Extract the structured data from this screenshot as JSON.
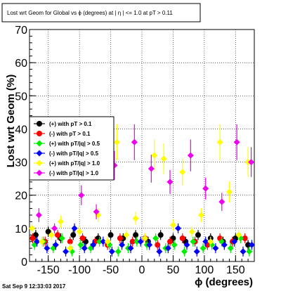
{
  "chart_data": {
    "type": "scatter",
    "title": "Lost wrt Geom for Global vs ϕ (degrees) at | η | <= 1.0 at pT > 0.11",
    "xlabel": "ϕ (degrees)",
    "ylabel": "Lost wrt Geom (%)",
    "xlim": [
      -180,
      180
    ],
    "ylim": [
      0,
      70
    ],
    "x_ticks": [
      -150,
      -100,
      -50,
      0,
      50,
      100,
      150
    ],
    "y_ticks": [
      0,
      10,
      20,
      30,
      40,
      50,
      60,
      70
    ],
    "grid": true,
    "legend_position": "left",
    "timestamp": "Sat Sep  9 12:33:03 2017",
    "series": [
      {
        "name": "(+) with pT > 0.1",
        "color": "#000000",
        "marker": "circle",
        "x": [
          -170,
          -150,
          -130,
          -110,
          -90,
          -70,
          -50,
          -30,
          -10,
          10,
          30,
          50,
          70,
          90,
          110,
          130,
          150,
          170
        ],
        "y": [
          8,
          9,
          7,
          8,
          6,
          7,
          8,
          7,
          8,
          6,
          8,
          7,
          6,
          8,
          7,
          6,
          7,
          5
        ]
      },
      {
        "name": "(-) with pT > 0.1",
        "color": "#ff0000",
        "marker": "circle",
        "x": [
          -175,
          -155,
          -135,
          -115,
          -95,
          -75,
          -55,
          -35,
          -15,
          5,
          25,
          45,
          65,
          85,
          105,
          125,
          145,
          165
        ],
        "y": [
          7,
          6,
          8,
          6,
          7,
          6,
          5,
          7,
          6,
          7,
          5,
          6,
          7,
          6,
          5,
          7,
          6,
          7
        ]
      },
      {
        "name": "(+) with pT/|q| > 0.5",
        "color": "#00ee00",
        "marker": "diamond",
        "x": [
          -172,
          -158,
          -142,
          -128,
          -112,
          -98,
          -82,
          -68,
          -52,
          -38,
          -22,
          -8,
          8,
          22,
          38,
          52,
          68,
          82,
          98,
          112,
          128,
          142,
          158,
          172
        ],
        "y": [
          5,
          6,
          4,
          7,
          3,
          5,
          4,
          6,
          5,
          3,
          4,
          6,
          5,
          7,
          4,
          5,
          3,
          6,
          4,
          5,
          6,
          4,
          7,
          3
        ]
      },
      {
        "name": "(-) with pT/|q| > 0.5",
        "color": "#0000ff",
        "marker": "diamond",
        "x": [
          -168,
          -152,
          -138,
          -122,
          -108,
          -92,
          -78,
          -62,
          -48,
          -32,
          -18,
          -2,
          12,
          28,
          42,
          58,
          72,
          88,
          102,
          118,
          132,
          148,
          162,
          176
        ],
        "y": [
          6,
          4,
          5,
          3,
          10,
          4,
          5,
          6,
          3,
          5,
          4,
          6,
          5,
          3,
          4,
          10,
          5,
          3,
          6,
          4,
          5,
          6,
          3,
          5
        ]
      },
      {
        "name": "(+) with pT/|q| > 1.0",
        "color": "#ffff00",
        "marker": "diamond",
        "x": [
          -176,
          -160,
          -145,
          -130,
          -115,
          -100,
          -85,
          -70,
          -55,
          -40,
          -25,
          -10,
          5,
          20,
          35,
          50,
          65,
          80,
          95,
          110,
          125,
          140,
          155,
          170
        ],
        "y": [
          10,
          6,
          8,
          12,
          4,
          9,
          30,
          14,
          6,
          36,
          8,
          13,
          7,
          32,
          31,
          11,
          27,
          9,
          14,
          6,
          36,
          21,
          8,
          30
        ]
      },
      {
        "name": "(-) with pT/|q| > 1.0",
        "color": "#ee00ee",
        "marker": "diamond",
        "x": [
          -165,
          -140,
          -118,
          -97,
          -73,
          -44,
          -12,
          15,
          45,
          78,
          102,
          128,
          152,
          175
        ],
        "y": [
          14,
          10,
          34,
          20,
          15,
          29,
          36,
          28,
          24,
          32,
          22,
          18,
          36,
          30
        ]
      }
    ]
  }
}
